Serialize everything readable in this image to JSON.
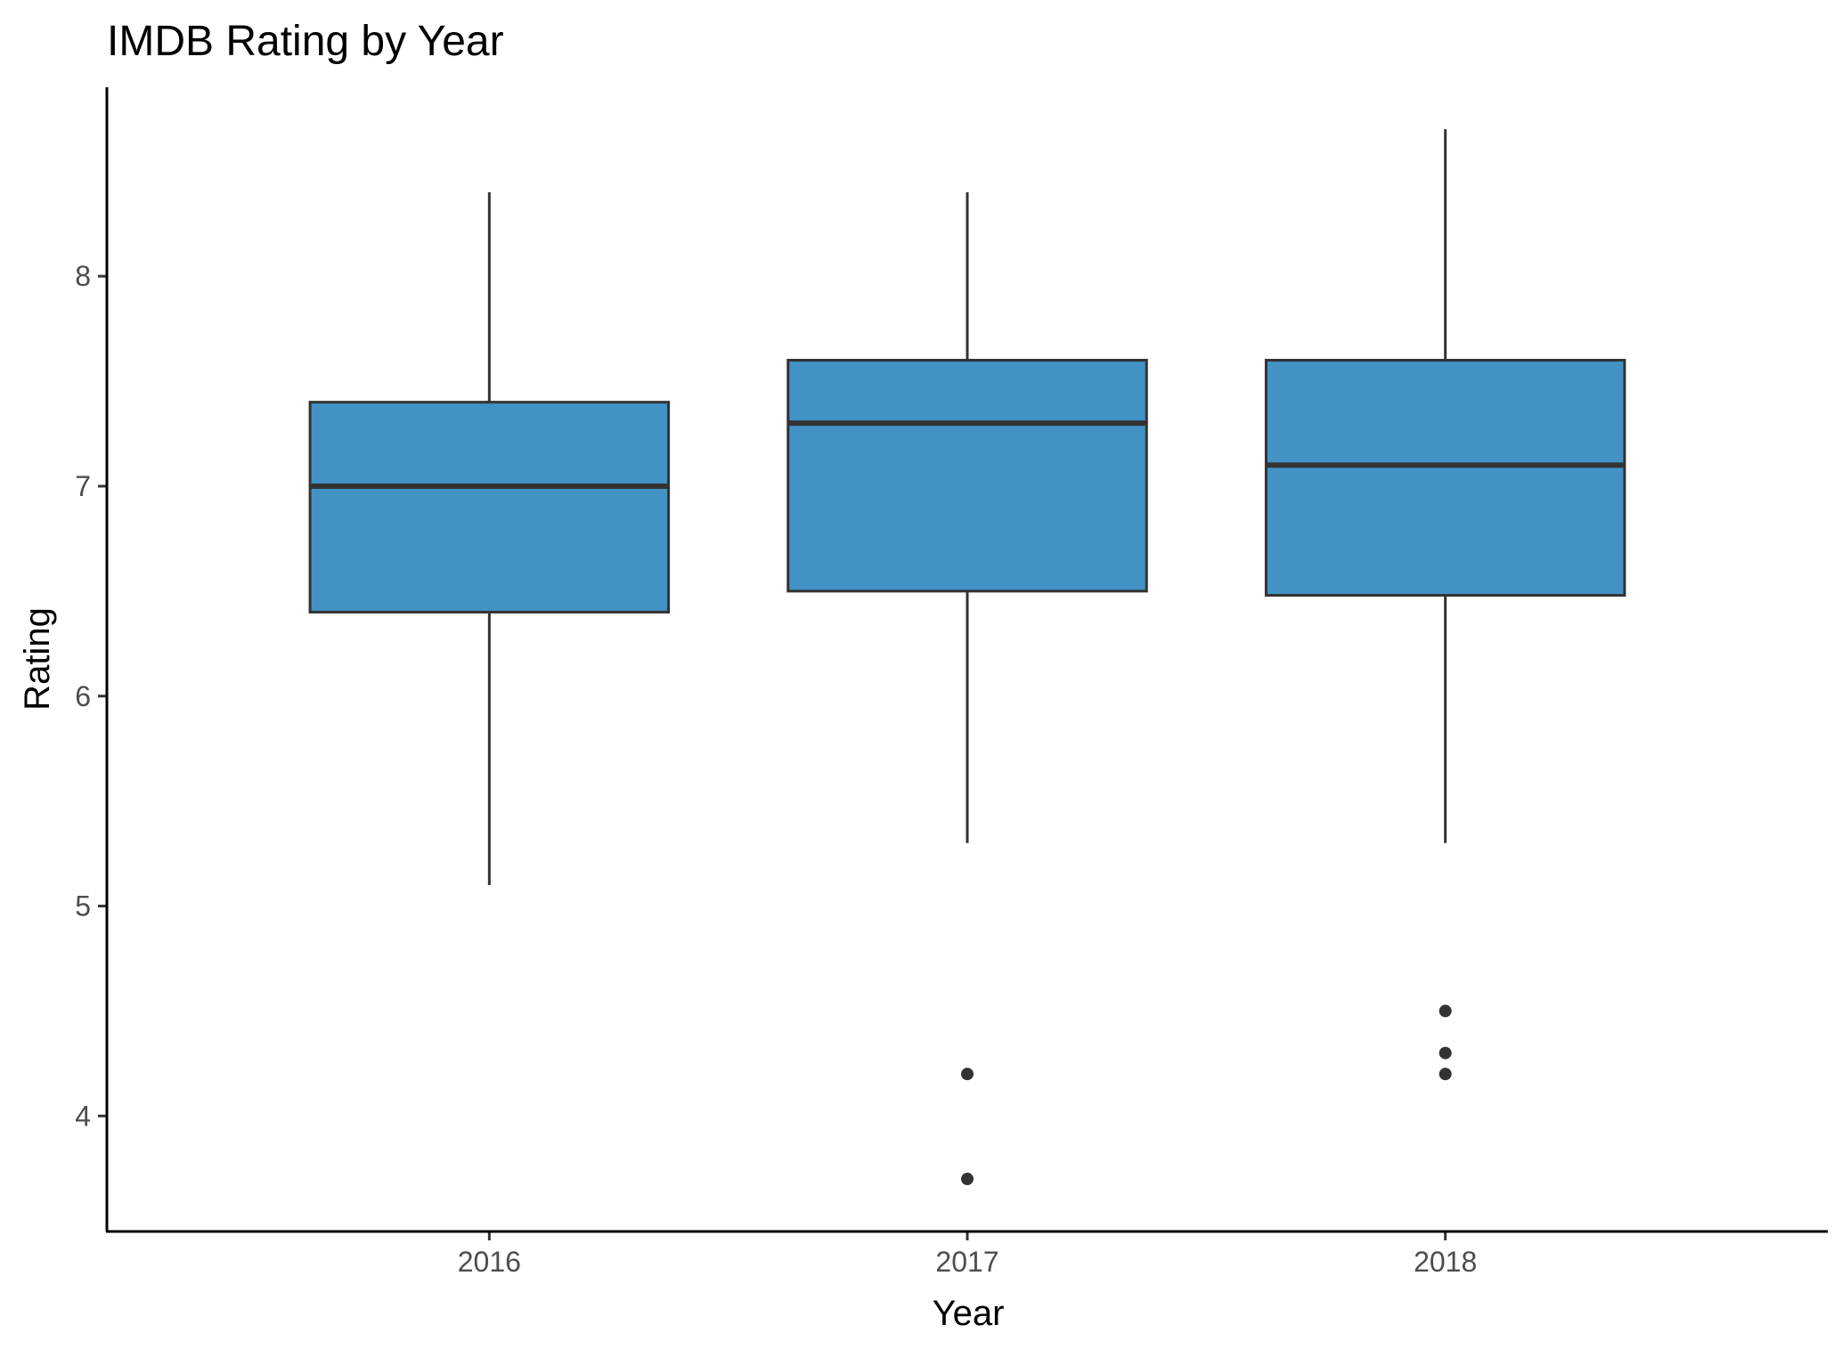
{
  "chart_data": {
    "type": "box",
    "title": "IMDB Rating by Year",
    "xlabel": "Year",
    "ylabel": "Rating",
    "ylim": [
      3.45,
      8.9
    ],
    "yticks": [
      "4",
      "5",
      "6",
      "7",
      "8"
    ],
    "grid": false,
    "legend": "none",
    "fill_color": "#4292c6",
    "line_color": "#333333",
    "categories": [
      "2016",
      "2017",
      "2018"
    ],
    "boxes": [
      {
        "category": "2016",
        "whisker_low": 5.1,
        "q1": 6.4,
        "median": 7.0,
        "q3": 7.4,
        "whisker_high": 8.4,
        "outliers": []
      },
      {
        "category": "2017",
        "whisker_low": 5.3,
        "q1": 6.5,
        "median": 7.3,
        "q3": 7.6,
        "whisker_high": 8.4,
        "outliers": [
          4.2,
          3.7
        ]
      },
      {
        "category": "2018",
        "whisker_low": 5.3,
        "q1": 6.48,
        "median": 7.1,
        "q3": 7.6,
        "whisker_high": 8.7,
        "outliers": [
          4.5,
          4.3,
          4.2
        ]
      }
    ]
  }
}
